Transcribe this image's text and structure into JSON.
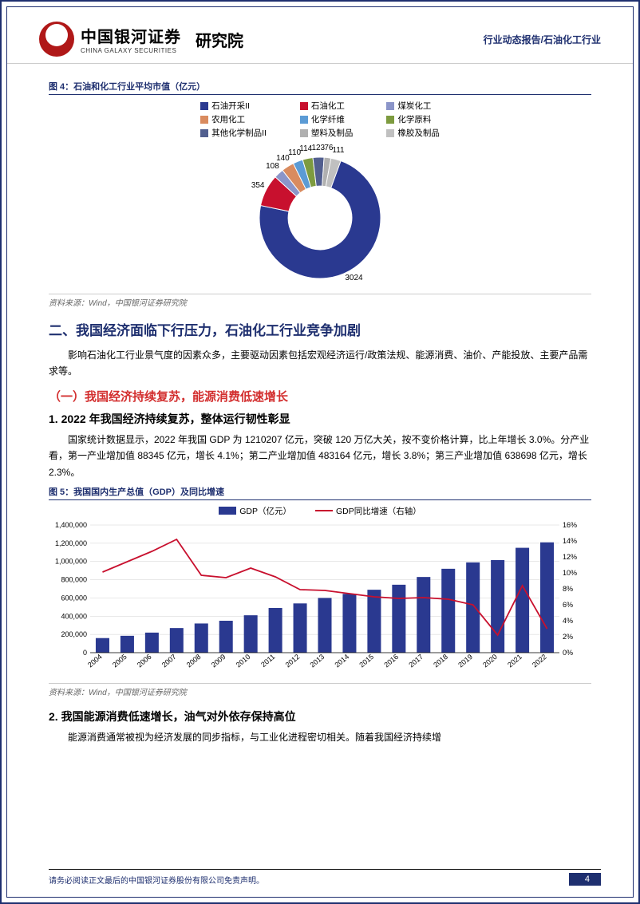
{
  "header": {
    "logo_cn": "中国银河证券",
    "logo_en": "CHINA GALAXY SECURITIES",
    "dept": "研究院",
    "right": "行业动态报告/石油化工行业"
  },
  "fig4": {
    "title": "图 4：石油和化工行业平均市值（亿元）",
    "legend": [
      {
        "label": "石油开采II",
        "color": "#2a3990"
      },
      {
        "label": "石油化工",
        "color": "#c8102e"
      },
      {
        "label": "煤炭化工",
        "color": "#8b95c9"
      },
      {
        "label": "农用化工",
        "color": "#d98b5f"
      },
      {
        "label": "化学纤维",
        "color": "#5b9bd5"
      },
      {
        "label": "化学原料",
        "color": "#7d9b3f"
      },
      {
        "label": "其他化学制品II",
        "color": "#525f8f"
      },
      {
        "label": "塑料及制品",
        "color": "#b0b0b0"
      },
      {
        "label": "橡胶及制品",
        "color": "#c0c0c0"
      }
    ],
    "data": [
      {
        "label": "3024",
        "value": 3024,
        "color": "#2a3990"
      },
      {
        "label": "354",
        "value": 354,
        "color": "#c8102e"
      },
      {
        "label": "108",
        "value": 108,
        "color": "#8b95c9"
      },
      {
        "label": "140",
        "value": 140,
        "color": "#d98b5f"
      },
      {
        "label": "110",
        "value": 110,
        "color": "#5b9bd5"
      },
      {
        "label": "114",
        "value": 114,
        "color": "#7d9b3f"
      },
      {
        "label": "123",
        "value": 123,
        "color": "#525f8f"
      },
      {
        "label": "76",
        "value": 76,
        "color": "#b0b0b0"
      },
      {
        "label": "111",
        "value": 111,
        "color": "#c0c0c0"
      }
    ],
    "source": "资料来源：Wind，中国银河证券研究院"
  },
  "section2": {
    "title": "二、我国经济面临下行压力，石油化工行业竞争加剧",
    "intro": "影响石油化工行业景气度的因素众多，主要驱动因素包括宏观经济运行/政策法规、能源消费、油价、产能投放、主要产品需求等。",
    "sub1_title": "（一）我国经济持续复苏，能源消费低速增长",
    "sub1_1_title": "1. 2022 年我国经济持续复苏，整体运行韧性彰显",
    "sub1_1_body": "国家统计数据显示，2022 年我国 GDP 为 1210207 亿元，突破 120 万亿大关，按不变价格计算，比上年增长 3.0%。分产业看，第一产业增加值 88345 亿元，增长 4.1%；第二产业增加值 483164 亿元，增长 3.8%；第三产业增加值 638698 亿元，增长 2.3%。",
    "sub1_2_title": "2. 我国能源消费低速增长，油气对外依存保持高位",
    "sub1_2_body": "能源消费通常被视为经济发展的同步指标，与工业化进程密切相关。随着我国经济持续增"
  },
  "fig5": {
    "title": "图 5：我国国内生产总值（GDP）及同比增速",
    "legend_bar": "GDP（亿元）",
    "legend_line": "GDP同比增速（右轴）",
    "bar_color": "#2a3990",
    "line_color": "#c8102e",
    "years": [
      "2004",
      "2005",
      "2006",
      "2007",
      "2008",
      "2009",
      "2010",
      "2011",
      "2012",
      "2013",
      "2014",
      "2015",
      "2016",
      "2017",
      "2018",
      "2019",
      "2020",
      "2021",
      "2022"
    ],
    "gdp": [
      160000,
      185000,
      220000,
      270000,
      320000,
      350000,
      410000,
      490000,
      540000,
      600000,
      645000,
      690000,
      745000,
      830000,
      920000,
      990000,
      1015000,
      1150000,
      1210000
    ],
    "growth": [
      10.1,
      11.4,
      12.7,
      14.2,
      9.7,
      9.4,
      10.6,
      9.5,
      7.9,
      7.8,
      7.4,
      7.0,
      6.8,
      6.9,
      6.7,
      6.0,
      2.2,
      8.4,
      3.0
    ],
    "y_left": {
      "min": 0,
      "max": 1400000,
      "step": 200000
    },
    "y_right": {
      "min": 0,
      "max": 16,
      "step": 2,
      "format_pct": true
    },
    "source": "资料来源：Wind，中国银河证券研究院"
  },
  "footer": {
    "disclaimer": "请务必阅读正文最后的中国银河证券股份有限公司免责声明。",
    "page": "4"
  }
}
